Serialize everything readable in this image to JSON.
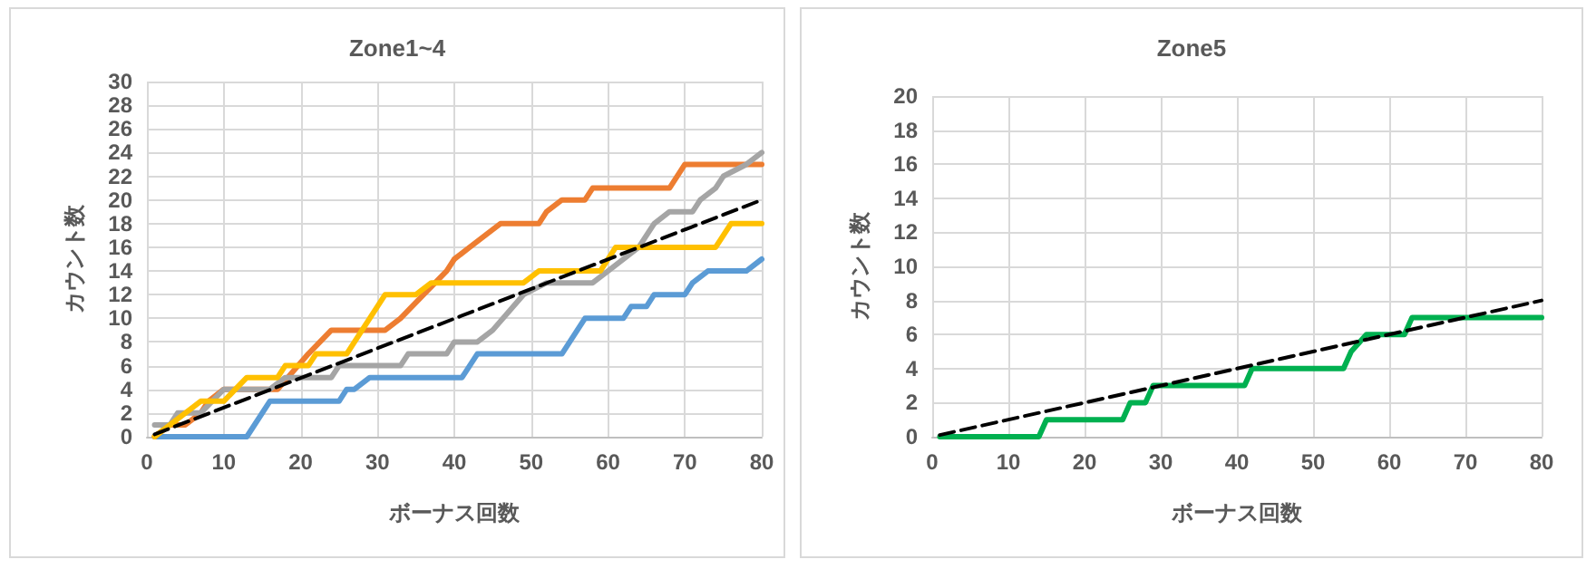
{
  "chart_data": [
    {
      "type": "line",
      "title": "Zone1~4",
      "xlabel": "ボーナス回数",
      "ylabel": "カウント数",
      "xlim": [
        0,
        80
      ],
      "xticks": [
        0,
        10,
        20,
        30,
        40,
        50,
        60,
        70,
        80
      ],
      "ylim": [
        0,
        30
      ],
      "yticks": [
        0,
        2,
        4,
        6,
        8,
        10,
        12,
        14,
        16,
        18,
        20,
        22,
        24,
        26,
        28,
        30
      ],
      "grid": true,
      "marker": "none",
      "series": [
        {
          "color": "#5b9bd5",
          "x": [
            1,
            13,
            16,
            25,
            26,
            27,
            29,
            41,
            43,
            54,
            57,
            62,
            63,
            65,
            66,
            70,
            71,
            73,
            78,
            80
          ],
          "values": [
            0,
            0,
            3,
            3,
            4,
            4,
            5,
            5,
            7,
            7,
            10,
            10,
            11,
            11,
            12,
            12,
            13,
            14,
            14,
            15
          ]
        },
        {
          "color": "#ed7d31",
          "x": [
            1,
            3,
            5,
            7,
            8,
            10,
            17,
            21,
            24,
            31,
            33,
            36,
            39,
            40,
            42,
            46,
            51,
            52,
            54,
            57,
            58,
            68,
            70,
            80
          ],
          "values": [
            0,
            1,
            1,
            2,
            3,
            4,
            4,
            7,
            9,
            9,
            10,
            12,
            14,
            15,
            16,
            18,
            18,
            19,
            20,
            20,
            21,
            21,
            23,
            23
          ]
        },
        {
          "color": "#a5a5a5",
          "x": [
            1,
            3,
            4,
            7,
            10,
            16,
            18,
            24,
            25,
            33,
            34,
            39,
            40,
            43,
            45,
            49,
            52,
            58,
            60,
            64,
            66,
            68,
            71,
            72,
            74,
            75,
            78,
            80
          ],
          "values": [
            1,
            1,
            2,
            2,
            4,
            4,
            5,
            5,
            6,
            6,
            7,
            7,
            8,
            8,
            9,
            12,
            13,
            13,
            14,
            16,
            18,
            19,
            19,
            20,
            21,
            22,
            23,
            24
          ]
        },
        {
          "color": "#ffc000",
          "x": [
            1,
            3,
            7,
            10,
            13,
            17,
            18,
            21,
            22,
            26,
            28,
            31,
            35,
            37,
            49,
            51,
            59,
            61,
            74,
            75,
            76,
            80
          ],
          "values": [
            0,
            1,
            3,
            3,
            5,
            5,
            6,
            6,
            7,
            7,
            9,
            12,
            12,
            13,
            13,
            14,
            14,
            16,
            16,
            17,
            18,
            18
          ]
        },
        {
          "color": "#000000",
          "line_style": "dashed",
          "x": [
            1,
            80
          ],
          "values": [
            0.2,
            20
          ]
        }
      ]
    },
    {
      "type": "line",
      "title": "Zone5",
      "xlabel": "ボーナス回数",
      "ylabel": "カウント数",
      "xlim": [
        0,
        80
      ],
      "xticks": [
        0,
        10,
        20,
        30,
        40,
        50,
        60,
        70,
        80
      ],
      "ylim": [
        0,
        20
      ],
      "yticks": [
        0,
        2,
        4,
        6,
        8,
        10,
        12,
        14,
        16,
        18,
        20
      ],
      "grid": true,
      "marker": "none",
      "series": [
        {
          "color": "#00b050",
          "x": [
            1,
            14,
            15,
            25,
            26,
            28,
            29,
            41,
            42,
            54,
            55,
            57,
            62,
            63,
            80
          ],
          "values": [
            0,
            0,
            1,
            1,
            2,
            2,
            3,
            3,
            4,
            4,
            5,
            6,
            6,
            7,
            7
          ]
        },
        {
          "color": "#000000",
          "line_style": "dashed",
          "x": [
            1,
            80
          ],
          "values": [
            0.1,
            8
          ]
        }
      ]
    }
  ]
}
